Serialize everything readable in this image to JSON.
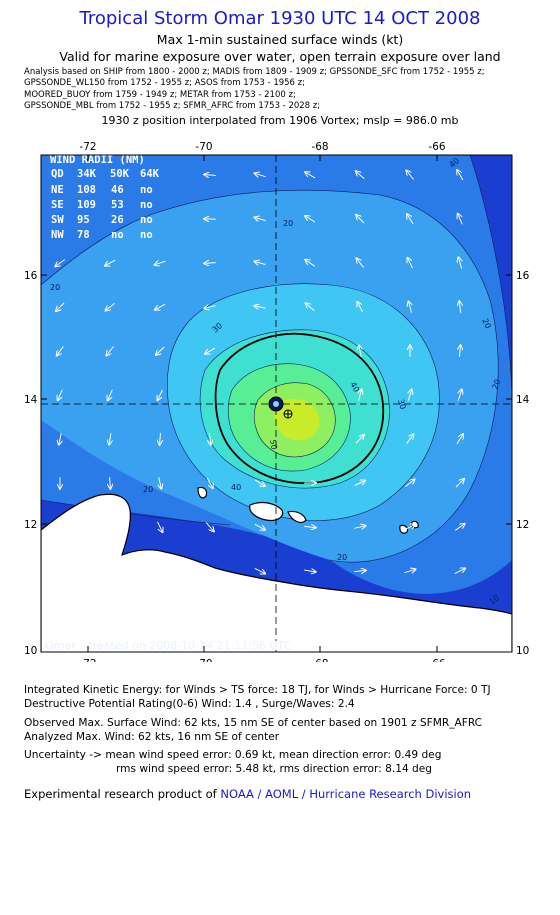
{
  "header": {
    "title": "Tropical Storm Omar 1930 UTC 14 OCT 2008",
    "subtitle_1": "Max 1-min sustained surface winds (kt)",
    "subtitle_2": "Valid for marine exposure over water, open terrain exposure over land",
    "analysis_lines": [
      "Analysis based on  SHIP from 1800 - 2000 z;  MADIS from 1809 - 1909 z;  GPSSONDE_SFC from 1752 - 1955 z;",
      "GPSSONDE_WL150 from 1752 - 1955 z;  ASOS from 1753 - 1956 z;",
      "MOORED_BUOY from 1759 - 1949 z;  METAR from 1753 - 2100 z;",
      "GPSSONDE_MBL from 1752 - 1955 z;  SFMR_AFRC from 1753 - 2028 z;"
    ],
    "position_line": "1930 z position interpolated from 1906 Vortex; mslp = 986.0 mb"
  },
  "map": {
    "lon_ticks": [
      "-72",
      "-70",
      "-68",
      "-66"
    ],
    "lat_ticks": [
      "16",
      "14",
      "12",
      "10"
    ],
    "lon_range": [
      -73.5,
      -64.5
    ],
    "lat_range": [
      10,
      17.0
    ],
    "center": {
      "lon": -68.5,
      "lat": 13.9
    },
    "contour_labels": [
      "20",
      "20",
      "20",
      "20",
      "20",
      "30",
      "30",
      "40",
      "40",
      "50",
      "20",
      "10",
      "40"
    ],
    "wind_radii": {
      "title": "WIND RADII (NM)",
      "header": [
        "QD",
        "34K",
        "50K",
        "64K"
      ],
      "rows": [
        [
          "NE",
          "108",
          "46",
          "no"
        ],
        [
          "SE",
          "109",
          "53",
          "no"
        ],
        [
          "SW",
          "95",
          "26",
          "no"
        ],
        [
          "NW",
          "78",
          "no",
          "no"
        ]
      ]
    },
    "credit": "Omar - created on 2008-10-14 21:11:56 UTC",
    "colors": {
      "deep": "#1a3fd0",
      "outer": "#2a7ae8",
      "ring20": "#3aa0f0",
      "ring30": "#40c6f2",
      "ring40": "#3fe0d2",
      "ring50": "#58ee96",
      "core": "#c8ec2a",
      "land": "#ffffff"
    }
  },
  "footer": {
    "ike": "Integrated Kinetic Energy:  for Winds > TS force: 18 TJ,  for Winds > Hurricane Force: 0 TJ",
    "dpr": "Destructive Potential Rating(0-6)   Wind: 1.4 , Surge/Waves: 2.4",
    "observed": "Observed Max. Surface Wind: 62 kts, 15 nm SE of center based on 1901 z SFMR_AFRC",
    "analyzed": "Analyzed Max. Wind: 62 kts, 16 nm SE of center",
    "uncertainty_1": "Uncertainty -> mean wind speed error: 0.69 kt,   mean direction error: 0.49 deg",
    "uncertainty_2": "rms wind speed error: 5.48 kt,   rms direction error: 8.14 deg",
    "product_prefix": "Experimental research product of",
    "product_org": "NOAA / AOML / Hurricane Research Division"
  }
}
